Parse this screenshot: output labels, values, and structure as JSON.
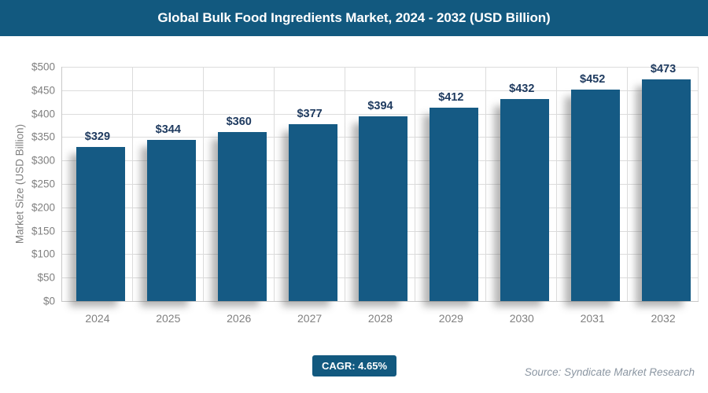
{
  "header": {
    "title": "Global Bulk Food Ingredients Market, 2024 - 2032 (USD Billion)"
  },
  "chart_data": {
    "type": "bar",
    "title": "Global Bulk Food Ingredients Market, 2024 - 2032 (USD Billion)",
    "categories": [
      "2024",
      "2025",
      "2026",
      "2027",
      "2028",
      "2029",
      "2030",
      "2031",
      "2032"
    ],
    "values": [
      329,
      344,
      360,
      377,
      394,
      412,
      432,
      452,
      473
    ],
    "data_labels": [
      "$329",
      "$344",
      "$360",
      "$377",
      "$394",
      "$412",
      "$432",
      "$452",
      "$473"
    ],
    "xlabel": "",
    "ylabel": "Market Size (USD Billion)",
    "ylim": [
      0,
      500
    ],
    "ytick_step": 50,
    "ytick_labels": [
      "$0",
      "$50",
      "$100",
      "$150",
      "$200",
      "$250",
      "$300",
      "$350",
      "$400",
      "$450",
      "$500"
    ],
    "grid": true,
    "legend": "none"
  },
  "footer": {
    "cagr_label": "CAGR: 4.65%",
    "source": "Source: Syndicate Market Research"
  },
  "theme": {
    "primary_blue": "#12597f",
    "bar_blue": "#155a84",
    "label_navy": "#1e3a5f",
    "axis_gray": "#808080",
    "grid_gray": "#dcdcdc",
    "axis_line": "#c8c8c8",
    "source_gray": "#8b96a2"
  }
}
